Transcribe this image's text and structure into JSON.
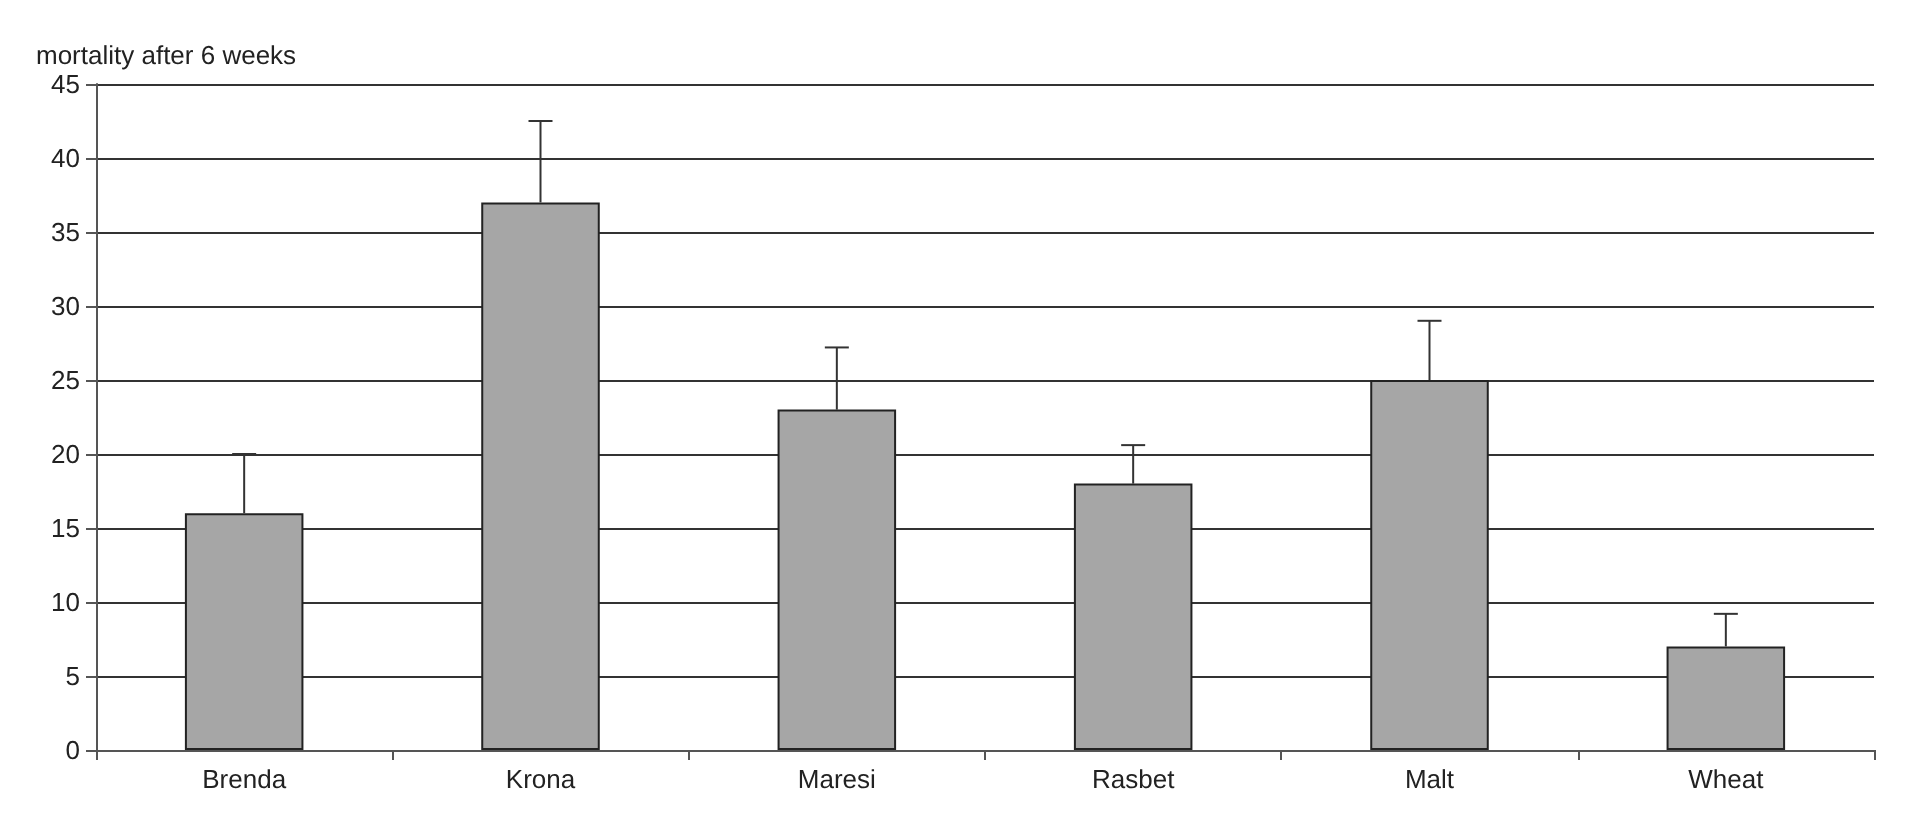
{
  "chart_data": {
    "type": "bar",
    "ylabel": "mortality after 6 weeks",
    "categories": [
      "Brenda",
      "Krona",
      "Maresi",
      "Rasbet",
      "Malt",
      "Wheat"
    ],
    "values": [
      16,
      37,
      23,
      18,
      25,
      7
    ],
    "errors": [
      [
        16,
        20
      ],
      [
        37,
        42.5
      ],
      [
        23,
        27.2
      ],
      [
        18,
        20.6
      ],
      [
        25,
        29
      ],
      [
        7,
        9.2
      ]
    ],
    "color": "#a6a6a6",
    "ylim": [
      0,
      45
    ],
    "yticks": [
      0,
      5,
      10,
      15,
      20,
      25,
      30,
      35,
      40,
      45
    ],
    "grid": "y"
  }
}
